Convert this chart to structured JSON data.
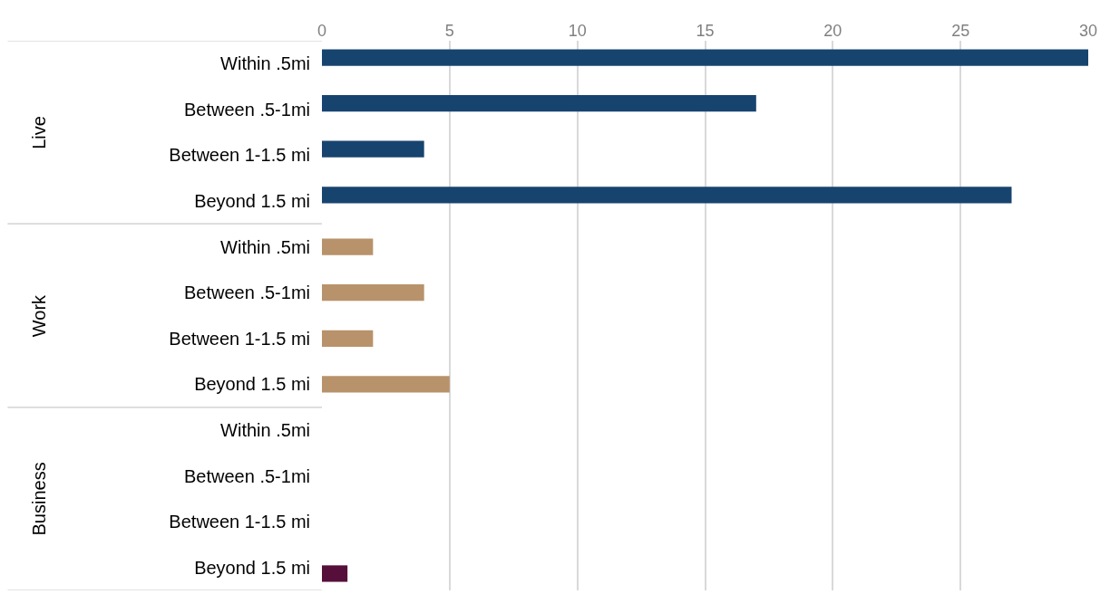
{
  "chart_data": {
    "type": "bar",
    "orientation": "horizontal",
    "categories": [
      "Within .5mi",
      "Between .5-1mi",
      "Between 1-1.5 mi",
      "Beyond 1.5 mi",
      "Within .5mi",
      "Between .5-1mi",
      "Between 1-1.5 mi",
      "Beyond 1.5 mi",
      "Within .5mi",
      "Between .5-1mi",
      "Between 1-1.5 mi",
      "Beyond 1.5 mi"
    ],
    "series": [
      {
        "color": "#17446f",
        "values": [
          30,
          17,
          4,
          27,
          null,
          null,
          null,
          null,
          null,
          null,
          null,
          null
        ]
      },
      {
        "color": "#b8926a",
        "values": [
          null,
          null,
          null,
          null,
          2,
          4,
          2,
          5,
          null,
          null,
          null,
          null
        ]
      },
      {
        "color": "#550f3a",
        "values": [
          null,
          null,
          null,
          null,
          null,
          null,
          null,
          null,
          0,
          0,
          0,
          1
        ]
      }
    ],
    "annotations": [
      "Live",
      "Work",
      "Business"
    ],
    "xlim": [
      0,
      30
    ],
    "xticks": [
      0,
      5,
      10,
      15,
      20,
      25,
      30
    ],
    "grid": "x",
    "legend": false
  }
}
